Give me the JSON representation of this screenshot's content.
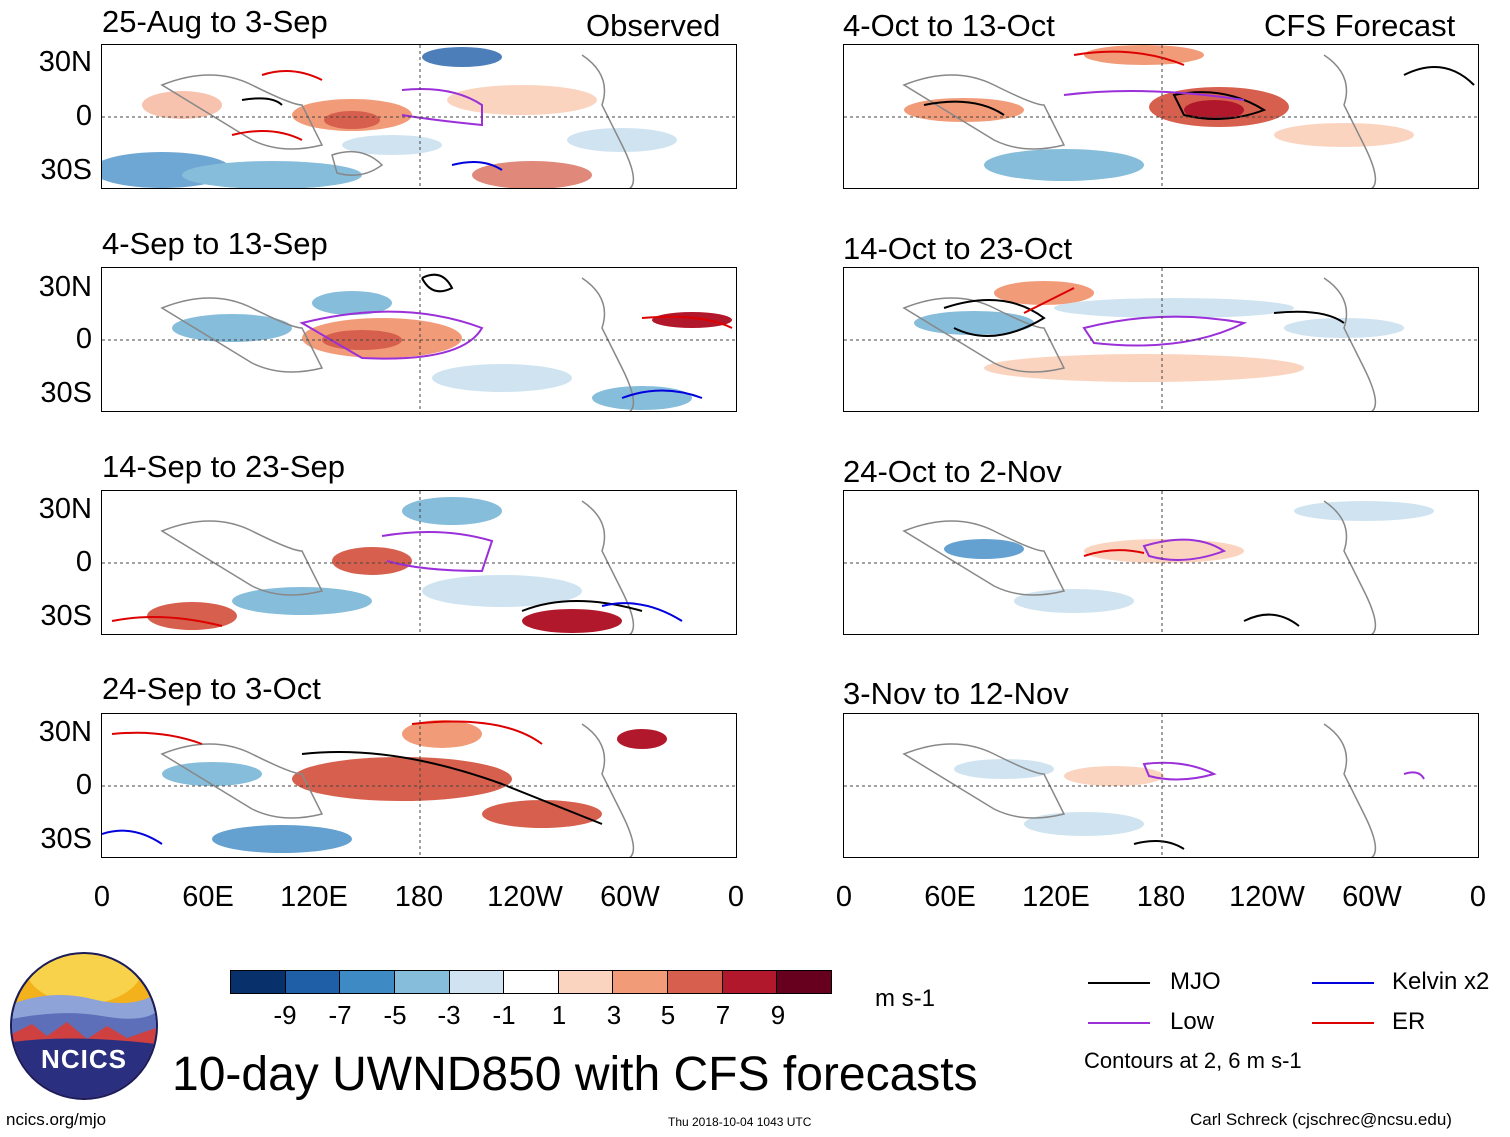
{
  "observed_label": "Observed",
  "forecast_label": "CFS Forecast",
  "panels_observed": [
    {
      "title": "25-Aug to 3-Sep"
    },
    {
      "title": "4-Sep to 13-Sep"
    },
    {
      "title": "14-Sep to 23-Sep"
    },
    {
      "title": "24-Sep to 3-Oct"
    }
  ],
  "panels_forecast": [
    {
      "title": "4-Oct to 13-Oct"
    },
    {
      "title": "14-Oct to 23-Oct"
    },
    {
      "title": "24-Oct to 2-Nov"
    },
    {
      "title": "3-Nov to 12-Nov"
    }
  ],
  "lat_labels": [
    "30N",
    "0",
    "30S"
  ],
  "lon_labels": [
    "0",
    "60E",
    "120E",
    "180",
    "120W",
    "60W",
    "0"
  ],
  "colorbar": {
    "labels": [
      "-9",
      "-7",
      "-5",
      "-3",
      "-1",
      "1",
      "3",
      "5",
      "7",
      "9"
    ],
    "colors": [
      "#08306b",
      "#1f5fa8",
      "#3d8ac4",
      "#86bddb",
      "#cfe4f0",
      "#ffffff",
      "#fbd4c0",
      "#f29b78",
      "#d6604d",
      "#b2182b",
      "#67001f"
    ],
    "units": "m s-1"
  },
  "legend": {
    "items": [
      {
        "label": "MJO",
        "color": "#000000"
      },
      {
        "label": "Kelvin x2",
        "color": "#0000dd"
      },
      {
        "label": "Low",
        "color": "#9b30d9"
      },
      {
        "label": "ER",
        "color": "#dd0000"
      }
    ],
    "contours_note": "Contours at 2, 6 m s-1"
  },
  "main_title": "10-day UWND850 with CFS forecasts",
  "logo_text": "NCICS",
  "footer": {
    "url": "ncics.org/mjo",
    "timestamp": "Thu 2018-10-04 1043 UTC",
    "credit": "Carl Schreck (cjschrec@ncsu.edu)"
  }
}
